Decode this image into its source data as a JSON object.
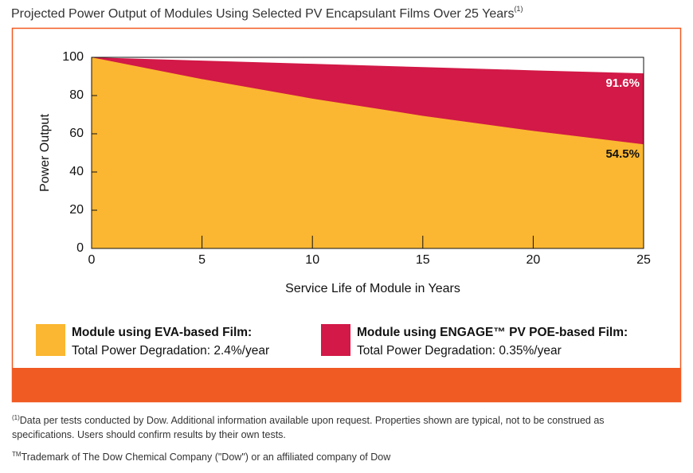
{
  "chart_data": {
    "type": "area",
    "title": "Projected Power Output of Modules Using Selected PV Encapsulant Films Over 25 Years",
    "title_note": "(1)",
    "x_label": "Service Life of Module in Years",
    "y_label": "Power Output",
    "x": [
      0,
      5,
      10,
      15,
      20,
      25
    ],
    "xlim": [
      0,
      25
    ],
    "xticks": [
      0,
      5,
      10,
      15,
      20,
      25
    ],
    "ylim": [
      0,
      100
    ],
    "yticks": [
      0,
      20,
      40,
      60,
      80,
      100
    ],
    "series": [
      {
        "name": "Module using EVA-based Film:",
        "description": "Total Power Degradation: 2.4%/year",
        "color": "#fbb731",
        "label_color": "#111111",
        "values": [
          100,
          88.6,
          78.4,
          69.4,
          61.5,
          54.5
        ],
        "value_labels": [
          null,
          null,
          null,
          null,
          null,
          "54.5%"
        ]
      },
      {
        "name": "Module using ENGAGE™ PV POE-based Film:",
        "description": "Total Power Degradation: 0.35%/year",
        "color": "#d21947",
        "label_color": "#ffffff",
        "values": [
          100,
          98.3,
          96.6,
          94.9,
          93.2,
          91.6
        ],
        "value_labels": [
          null,
          null,
          null,
          null,
          null,
          "91.6%"
        ]
      }
    ]
  },
  "footnotes": [
    {
      "marker": "(1)",
      "text": "Data per tests conducted by Dow. Additional information available upon request. Properties shown are typical, not to be construed as specifications. Users should confirm results by their own tests."
    },
    {
      "marker": "TM",
      "text": "Trademark of The Dow Chemical Company (\"Dow\") or an affiliated company of Dow"
    }
  ]
}
